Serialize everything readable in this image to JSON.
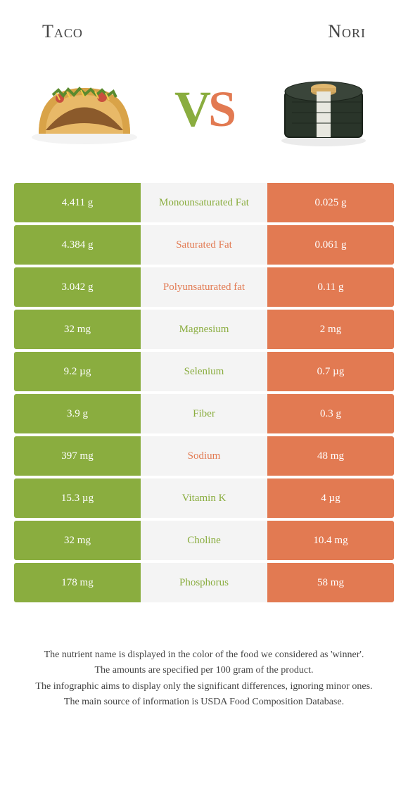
{
  "colors": {
    "left": "#8aad3f",
    "right": "#e27a52",
    "mid_bg": "#f4f4f4",
    "winner_left": "#8aad3f",
    "winner_right": "#e27a52"
  },
  "header": {
    "left_title": "Taco",
    "right_title": "Nori"
  },
  "vs": {
    "v": "V",
    "s": "S"
  },
  "rows": [
    {
      "left": "4.411 g",
      "mid": "Monounsaturated Fat",
      "right": "0.025 g",
      "winner": "left"
    },
    {
      "left": "4.384 g",
      "mid": "Saturated Fat",
      "right": "0.061 g",
      "winner": "right"
    },
    {
      "left": "3.042 g",
      "mid": "Polyunsaturated fat",
      "right": "0.11 g",
      "winner": "right"
    },
    {
      "left": "32 mg",
      "mid": "Magnesium",
      "right": "2 mg",
      "winner": "left"
    },
    {
      "left": "9.2 µg",
      "mid": "Selenium",
      "right": "0.7 µg",
      "winner": "left"
    },
    {
      "left": "3.9 g",
      "mid": "Fiber",
      "right": "0.3 g",
      "winner": "left"
    },
    {
      "left": "397 mg",
      "mid": "Sodium",
      "right": "48 mg",
      "winner": "right"
    },
    {
      "left": "15.3 µg",
      "mid": "Vitamin K",
      "right": "4 µg",
      "winner": "left"
    },
    {
      "left": "32 mg",
      "mid": "Choline",
      "right": "10.4 mg",
      "winner": "left"
    },
    {
      "left": "178 mg",
      "mid": "Phosphorus",
      "right": "58 mg",
      "winner": "left"
    }
  ],
  "footer": {
    "line1": "The nutrient name is displayed in the color of the food we considered as 'winner'.",
    "line2": "The amounts are specified per 100 gram of the product.",
    "line3": "The infographic aims to display only the significant differences, ignoring minor ones.",
    "line4": "The main source of information is USDA Food Composition Database."
  }
}
